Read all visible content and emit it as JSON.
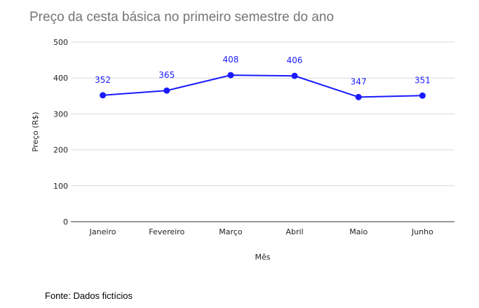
{
  "chart_data": {
    "type": "line",
    "title": "Preço da cesta básica no primeiro semestre do ano",
    "xlabel": "Mês",
    "ylabel": "Preço (R$)",
    "categories": [
      "Janeiro",
      "Fevereiro",
      "Março",
      "Abril",
      "Maio",
      "Junho"
    ],
    "series": [
      {
        "values": [
          352,
          365,
          408,
          406,
          347,
          351
        ]
      }
    ],
    "ylim": [
      0,
      500
    ],
    "yticks": [
      0,
      100,
      200,
      300,
      400,
      500
    ],
    "grid": true,
    "data_labels": true,
    "color": "#1a1aff",
    "source": "Fonte: Dados fictícios"
  }
}
